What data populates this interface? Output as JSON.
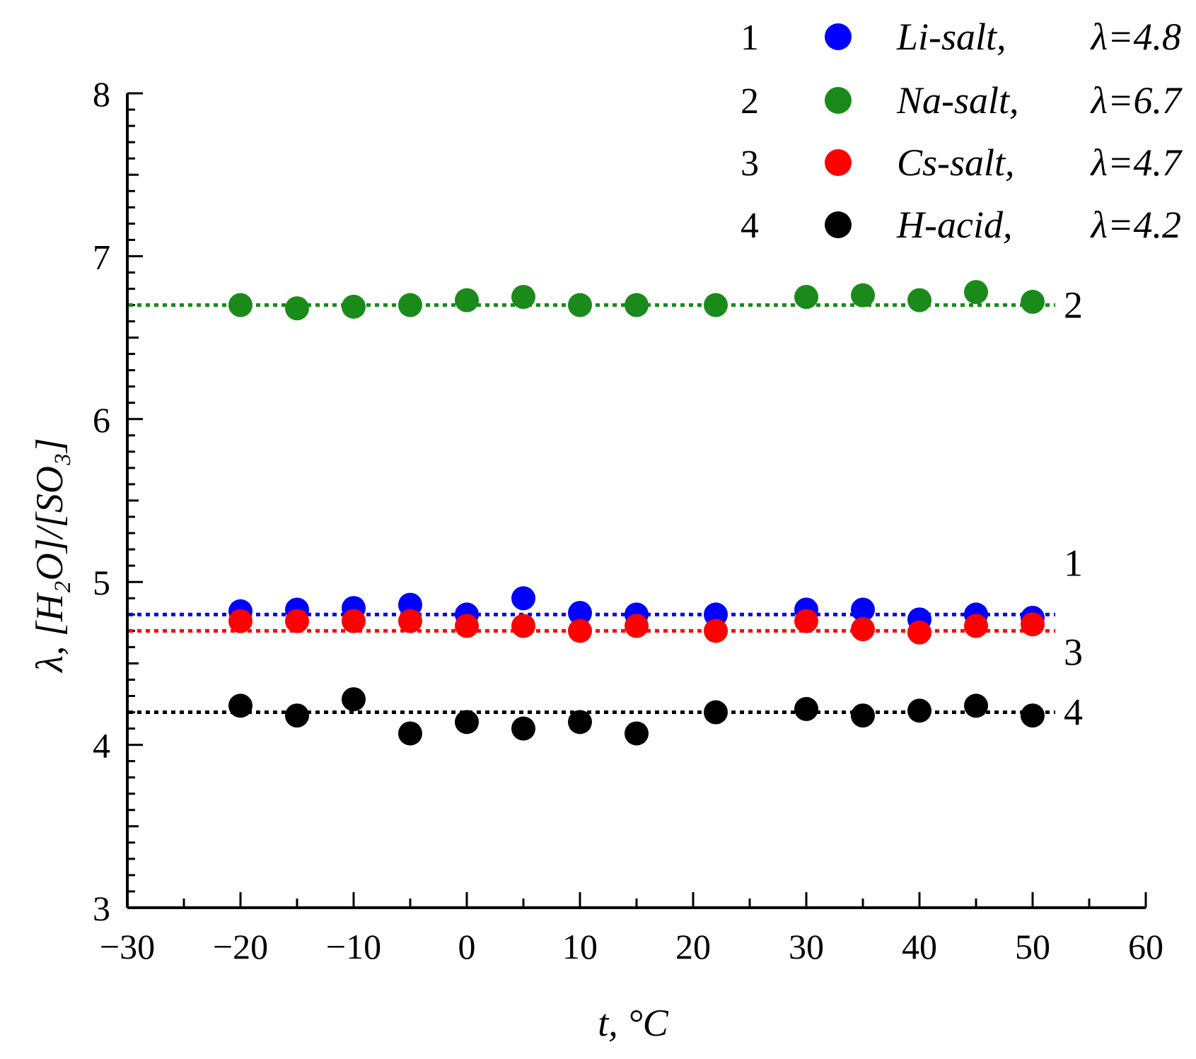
{
  "chart_data": {
    "type": "scatter",
    "xlabel": "t, °C",
    "ylabel": "λ, [H₂O]/[SO₃]",
    "xlim": [
      -30,
      60
    ],
    "ylim": [
      3,
      8
    ],
    "x_ticks": [
      -30,
      -20,
      -10,
      0,
      10,
      20,
      30,
      40,
      50,
      60
    ],
    "x_tick_labels": [
      "−30",
      "−20",
      "−10",
      "0",
      "10",
      "20",
      "30",
      "40",
      "50",
      "60"
    ],
    "y_ticks": [
      3,
      4,
      5,
      6,
      7,
      8
    ],
    "y_tick_labels": [
      "3",
      "4",
      "5",
      "6",
      "7",
      "8"
    ],
    "grid": false,
    "legend_position": "top-right",
    "series": [
      {
        "id": "1",
        "name": "Li-salt",
        "lambda_label": "λ=4.8",
        "mean": 4.8,
        "color": "#0000ff",
        "x": [
          -20,
          -15,
          -10,
          -5,
          0,
          5,
          10,
          15,
          22,
          30,
          35,
          40,
          45,
          50
        ],
        "y": [
          4.82,
          4.83,
          4.84,
          4.86,
          4.8,
          4.9,
          4.81,
          4.8,
          4.8,
          4.83,
          4.83,
          4.77,
          4.8,
          4.78
        ]
      },
      {
        "id": "2",
        "name": "Na-salt",
        "lambda_label": "λ=6.7",
        "mean": 6.7,
        "color": "#1a8a1a",
        "x": [
          -20,
          -15,
          -10,
          -5,
          0,
          5,
          10,
          15,
          22,
          30,
          35,
          40,
          45,
          50
        ],
        "y": [
          6.7,
          6.68,
          6.69,
          6.7,
          6.73,
          6.75,
          6.7,
          6.7,
          6.7,
          6.75,
          6.76,
          6.73,
          6.78,
          6.72
        ]
      },
      {
        "id": "3",
        "name": "Cs-salt",
        "lambda_label": "λ=4.7",
        "mean": 4.7,
        "color": "#ff0000",
        "x": [
          -20,
          -15,
          -10,
          -5,
          0,
          5,
          10,
          15,
          22,
          30,
          35,
          40,
          45,
          50
        ],
        "y": [
          4.76,
          4.76,
          4.76,
          4.76,
          4.73,
          4.73,
          4.7,
          4.73,
          4.7,
          4.76,
          4.71,
          4.69,
          4.73,
          4.74
        ]
      },
      {
        "id": "4",
        "name": "H-acid",
        "lambda_label": "λ=4.2",
        "mean": 4.2,
        "color": "#000000",
        "x": [
          -20,
          -15,
          -10,
          -5,
          0,
          5,
          10,
          15,
          22,
          30,
          35,
          40,
          45,
          50
        ],
        "y": [
          4.24,
          4.18,
          4.28,
          4.07,
          4.14,
          4.1,
          4.14,
          4.07,
          4.2,
          4.22,
          4.18,
          4.21,
          4.24,
          4.18
        ]
      }
    ],
    "line_end_labels": [
      {
        "text": "2",
        "series": "2"
      },
      {
        "text": "1",
        "series": "1"
      },
      {
        "text": "3",
        "series": "3"
      },
      {
        "text": "4",
        "series": "4"
      }
    ]
  }
}
